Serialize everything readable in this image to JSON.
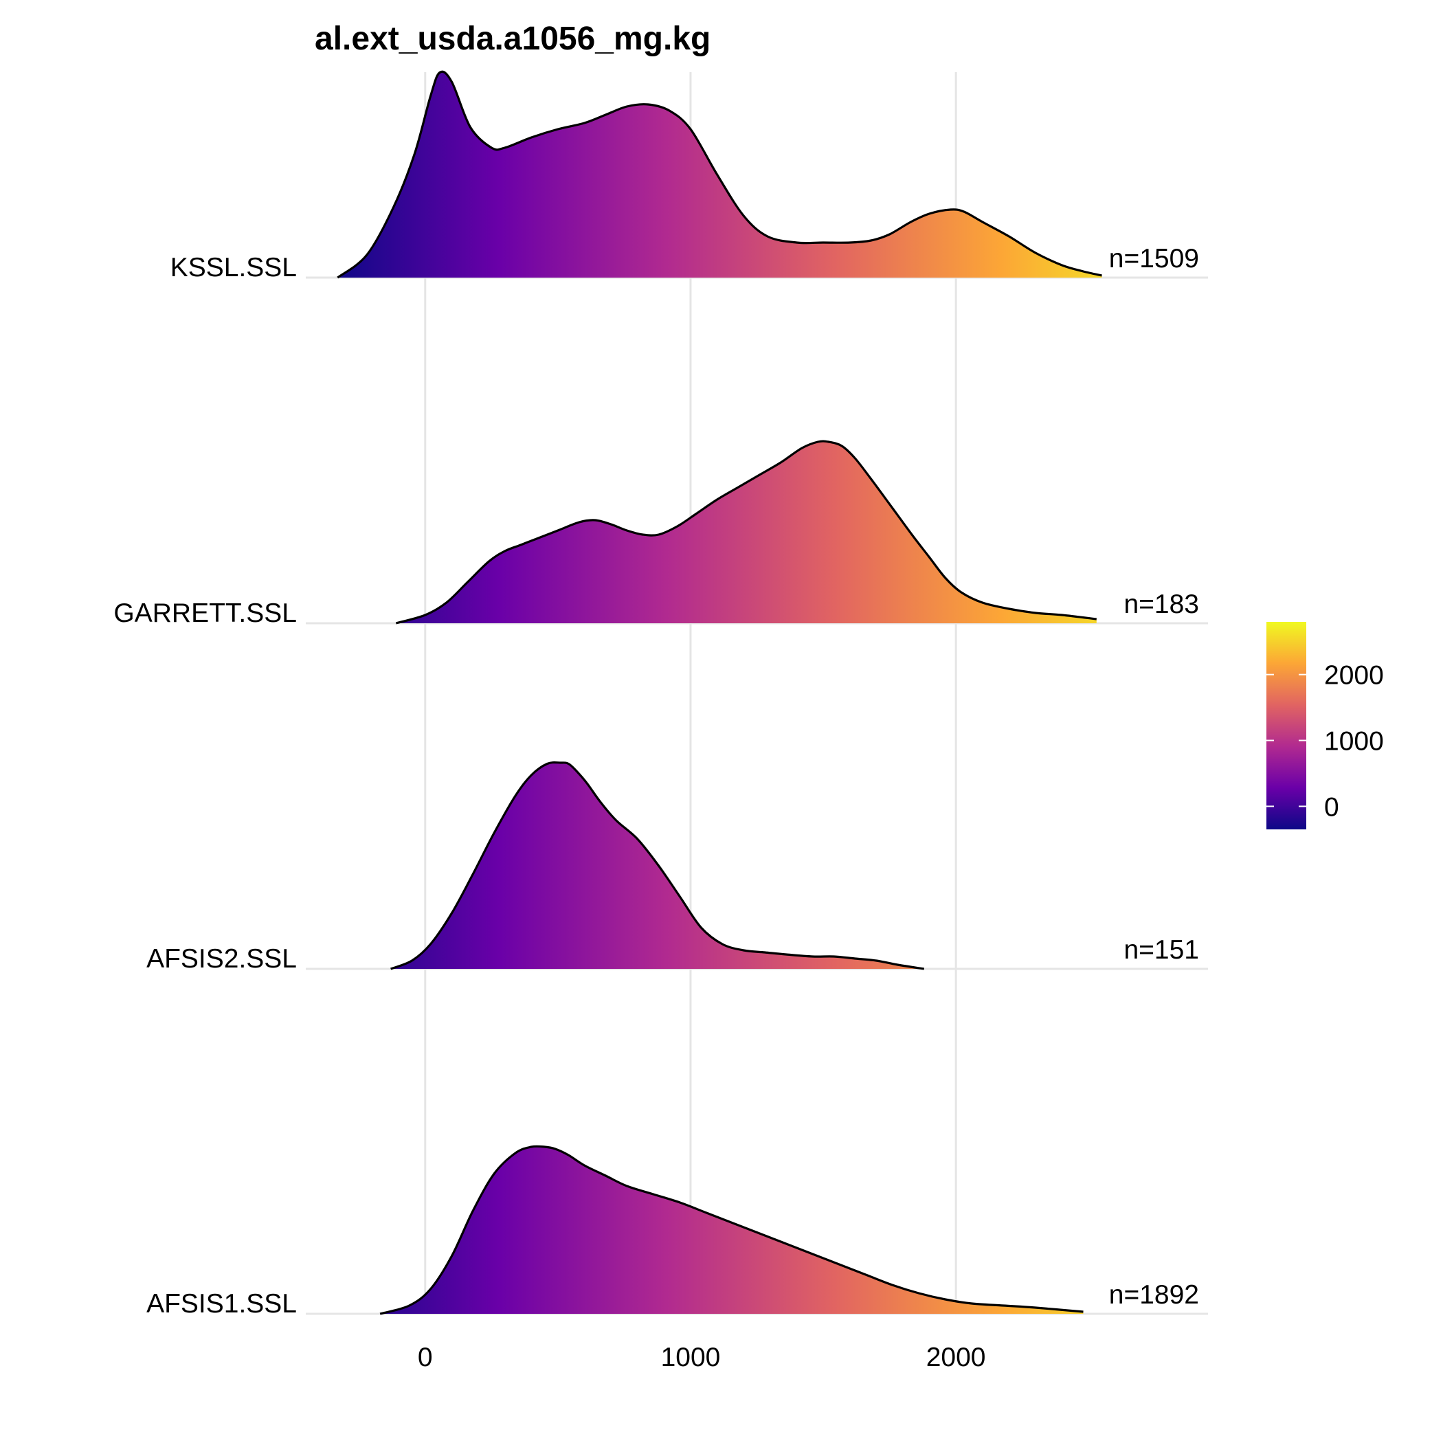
{
  "chart_data": {
    "type": "ridgeline",
    "title": "al.ext_usda.a1056_mg.kg",
    "xlabel": "",
    "ylabel": "",
    "xlim": [
      -450,
      2950
    ],
    "x_ticks": [
      0,
      1000,
      2000
    ],
    "x_tick_labels": [
      "0",
      "1000",
      "2000"
    ],
    "grid": true,
    "colormap": [
      "#0d0887",
      "#6a00a8",
      "#b12a90",
      "#e16462",
      "#fca636",
      "#f0f921"
    ],
    "color_range": [
      -350,
      2800
    ],
    "legend": {
      "position": "right",
      "ticks": [
        0,
        1000,
        2000
      ],
      "tick_labels": [
        "0",
        "1000",
        "2000"
      ]
    },
    "series": [
      {
        "name": "KSSL.SSL",
        "n_label": "n=1509",
        "x": [
          -330,
          -220,
          -120,
          -40,
          20,
          55,
          100,
          170,
          250,
          300,
          400,
          500,
          600,
          680,
          760,
          840,
          920,
          1000,
          1100,
          1200,
          1290,
          1400,
          1500,
          1600,
          1680,
          1750,
          1830,
          1900,
          1980,
          2030,
          2100,
          2200,
          2300,
          2400,
          2480,
          2550
        ],
        "y": [
          0.0,
          0.11,
          0.34,
          0.6,
          0.88,
          0.995,
          0.95,
          0.73,
          0.63,
          0.63,
          0.68,
          0.72,
          0.75,
          0.79,
          0.83,
          0.84,
          0.81,
          0.72,
          0.5,
          0.3,
          0.2,
          0.17,
          0.17,
          0.17,
          0.18,
          0.21,
          0.27,
          0.31,
          0.33,
          0.32,
          0.27,
          0.2,
          0.12,
          0.06,
          0.03,
          0.01
        ]
      },
      {
        "name": "GARRETT.SSL",
        "n_label": "n=183",
        "x": [
          -110,
          0,
          80,
          160,
          240,
          300,
          360,
          420,
          500,
          580,
          640,
          700,
          760,
          820,
          880,
          950,
          1020,
          1100,
          1180,
          1260,
          1340,
          1420,
          1480,
          1520,
          1570,
          1620,
          1680,
          1760,
          1840,
          1900,
          1960,
          2020,
          2100,
          2200,
          2300,
          2400,
          2530
        ],
        "y": [
          0.0,
          0.04,
          0.1,
          0.2,
          0.3,
          0.35,
          0.38,
          0.41,
          0.45,
          0.49,
          0.5,
          0.48,
          0.45,
          0.43,
          0.43,
          0.47,
          0.53,
          0.6,
          0.66,
          0.72,
          0.78,
          0.85,
          0.88,
          0.88,
          0.86,
          0.8,
          0.7,
          0.56,
          0.42,
          0.32,
          0.22,
          0.15,
          0.1,
          0.07,
          0.05,
          0.04,
          0.02
        ]
      },
      {
        "name": "AFSIS2.SSL",
        "n_label": "n=151",
        "x": [
          -130,
          -50,
          20,
          100,
          180,
          260,
          340,
          400,
          460,
          510,
          540,
          570,
          610,
          660,
          720,
          800,
          880,
          960,
          1040,
          1120,
          1200,
          1280,
          1360,
          1460,
          1540,
          1620,
          1700,
          1780,
          1880
        ],
        "y": [
          0.0,
          0.04,
          0.12,
          0.27,
          0.46,
          0.66,
          0.84,
          0.94,
          0.995,
          1.0,
          0.995,
          0.96,
          0.9,
          0.81,
          0.72,
          0.63,
          0.5,
          0.35,
          0.2,
          0.12,
          0.09,
          0.08,
          0.07,
          0.06,
          0.06,
          0.05,
          0.04,
          0.02,
          0.0
        ]
      },
      {
        "name": "AFSIS1.SSL",
        "n_label": "n=1892",
        "x": [
          -170,
          -60,
          20,
          100,
          180,
          260,
          340,
          400,
          450,
          490,
          540,
          600,
          680,
          760,
          860,
          960,
          1060,
          1160,
          1260,
          1360,
          1460,
          1560,
          1660,
          1760,
          1860,
          1960,
          2060,
          2180,
          2300,
          2480
        ],
        "y": [
          0.0,
          0.04,
          0.12,
          0.28,
          0.5,
          0.68,
          0.78,
          0.81,
          0.81,
          0.8,
          0.77,
          0.72,
          0.67,
          0.62,
          0.58,
          0.54,
          0.49,
          0.44,
          0.39,
          0.34,
          0.29,
          0.24,
          0.19,
          0.14,
          0.1,
          0.07,
          0.05,
          0.04,
          0.03,
          0.01
        ]
      }
    ]
  }
}
